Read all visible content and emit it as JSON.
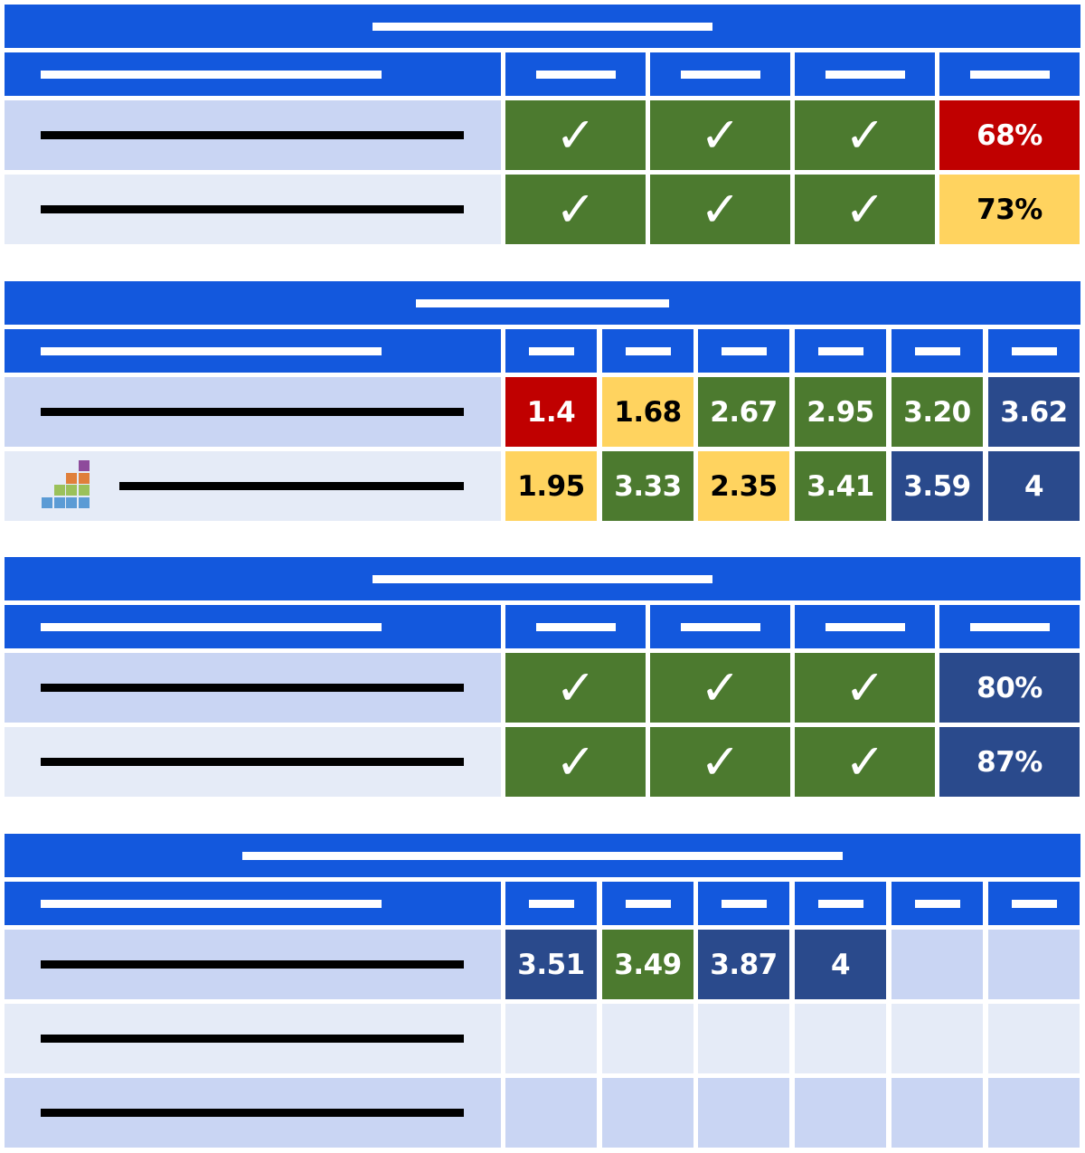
{
  "colors": {
    "header": "#1358DD",
    "row_odd": "#C9D5F3",
    "row_even": "#E5EBF7",
    "green": "#4C7A2F",
    "red": "#C00000",
    "yellow": "#FFD35F",
    "navy": "#2A4A8C"
  },
  "tables": [
    {
      "columns": 4,
      "rows": [
        {
          "cells": [
            {
              "value": "✓",
              "status": "green"
            },
            {
              "value": "✓",
              "status": "green"
            },
            {
              "value": "✓",
              "status": "green"
            },
            {
              "value": "68%",
              "status": "red"
            }
          ]
        },
        {
          "cells": [
            {
              "value": "✓",
              "status": "green"
            },
            {
              "value": "✓",
              "status": "green"
            },
            {
              "value": "✓",
              "status": "green"
            },
            {
              "value": "73%",
              "status": "yellow"
            }
          ]
        }
      ]
    },
    {
      "columns": 6,
      "rows": [
        {
          "cells": [
            {
              "value": "1.4",
              "status": "red"
            },
            {
              "value": "1.68",
              "status": "yellow"
            },
            {
              "value": "2.67",
              "status": "green"
            },
            {
              "value": "2.95",
              "status": "green"
            },
            {
              "value": "3.20",
              "status": "green"
            },
            {
              "value": "3.62",
              "status": "navy"
            }
          ]
        },
        {
          "icon": "bar-chart-icon",
          "cells": [
            {
              "value": "1.95",
              "status": "yellow"
            },
            {
              "value": "3.33",
              "status": "green"
            },
            {
              "value": "2.35",
              "status": "yellow"
            },
            {
              "value": "3.41",
              "status": "green"
            },
            {
              "value": "3.59",
              "status": "navy"
            },
            {
              "value": "4",
              "status": "navy"
            }
          ]
        }
      ]
    },
    {
      "columns": 4,
      "rows": [
        {
          "cells": [
            {
              "value": "✓",
              "status": "green"
            },
            {
              "value": "✓",
              "status": "green"
            },
            {
              "value": "✓",
              "status": "green"
            },
            {
              "value": "80%",
              "status": "navy"
            }
          ]
        },
        {
          "cells": [
            {
              "value": "✓",
              "status": "green"
            },
            {
              "value": "✓",
              "status": "green"
            },
            {
              "value": "✓",
              "status": "green"
            },
            {
              "value": "87%",
              "status": "navy"
            }
          ]
        }
      ]
    },
    {
      "columns": 6,
      "rows": [
        {
          "cells": [
            {
              "value": "3.51",
              "status": "navy"
            },
            {
              "value": "3.49",
              "status": "green"
            },
            {
              "value": "3.87",
              "status": "navy"
            },
            {
              "value": "4",
              "status": "navy"
            },
            {
              "value": "",
              "status": "empty"
            },
            {
              "value": "",
              "status": "empty"
            }
          ]
        },
        {
          "cells": [
            {
              "value": "",
              "status": "empty"
            },
            {
              "value": "",
              "status": "empty"
            },
            {
              "value": "",
              "status": "empty"
            },
            {
              "value": "",
              "status": "empty"
            },
            {
              "value": "",
              "status": "empty"
            },
            {
              "value": "",
              "status": "empty"
            }
          ]
        },
        {
          "cells": [
            {
              "value": "",
              "status": "empty"
            },
            {
              "value": "",
              "status": "empty"
            },
            {
              "value": "",
              "status": "empty"
            },
            {
              "value": "",
              "status": "empty"
            },
            {
              "value": "",
              "status": "empty"
            },
            {
              "value": "",
              "status": "empty"
            }
          ]
        }
      ]
    }
  ]
}
